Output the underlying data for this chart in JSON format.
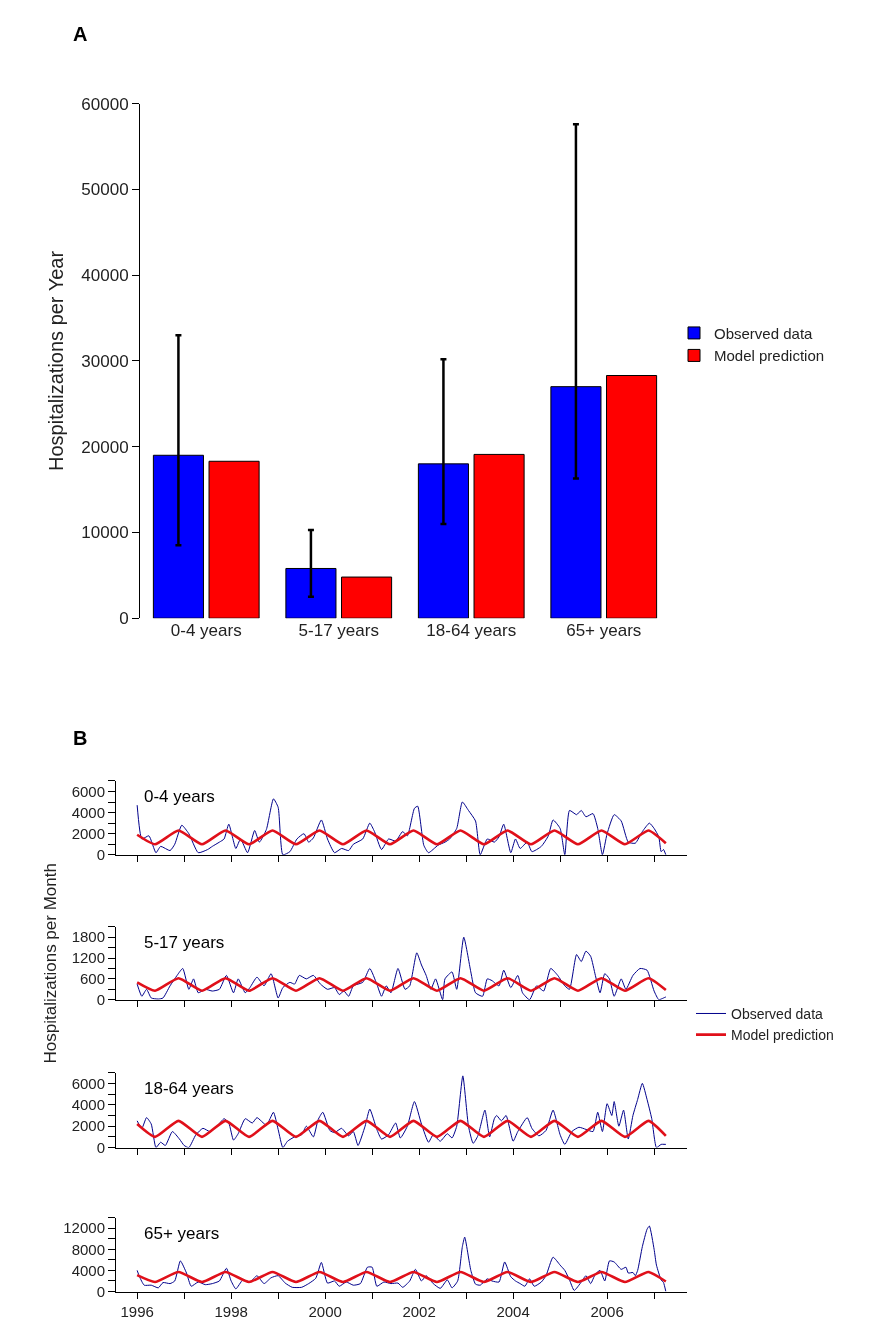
{
  "chart_data": [
    {
      "type": "bar",
      "ylabel": "Hospitalizations per Year",
      "annotations": [
        "A"
      ],
      "categories": [
        "0-4 years",
        "5-17 years",
        "18-64 years",
        "65+ years"
      ],
      "series": [
        {
          "name": "Observed data",
          "color": "#0000ff",
          "values": [
            19000,
            5800,
            18000,
            27000
          ],
          "errors": [
            [
              8500,
              33000
            ],
            [
              2500,
              10300
            ],
            [
              11000,
              30200
            ],
            [
              16300,
              57600
            ]
          ]
        },
        {
          "name": "Model prediction",
          "color": "#ff0000",
          "values": [
            18300,
            4800,
            19100,
            28300
          ]
        }
      ],
      "ylim": [
        0,
        60000
      ],
      "yticks": [
        0,
        10000,
        20000,
        30000,
        40000,
        50000,
        60000
      ],
      "legend": "right"
    },
    {
      "type": "line",
      "title": "0-4 years",
      "annotations": [
        "B"
      ],
      "tick_labels": "y",
      "legend": "right",
      "marker": "none",
      "line_style": "solid",
      "xlim": [
        1995.55,
        2007.7
      ],
      "xticks": [
        1996,
        {
          "value": 1997,
          "label": null
        },
        1998,
        {
          "value": 1999,
          "label": null
        },
        2000,
        {
          "value": 2001,
          "label": null
        },
        2002,
        {
          "value": 2003,
          "label": null
        },
        2004,
        {
          "value": 2005,
          "label": null
        },
        2006,
        {
          "value": 2007,
          "label": null
        }
      ],
      "ylim": [
        0,
        7000
      ],
      "yticks": [
        0,
        {
          "value": 1000,
          "label": null
        },
        2000,
        {
          "value": 3000,
          "label": null
        },
        4000,
        {
          "value": 5000,
          "label": null
        },
        6000,
        {
          "value": 7000,
          "label": null
        }
      ],
      "series": [
        {
          "name": "Observed data",
          "color": "#00008b",
          "x": [
            1996.0,
            1996.1,
            1996.25,
            1996.4,
            1996.5,
            1996.7,
            1996.8,
            1996.95,
            1997.1,
            1997.3,
            1997.5,
            1997.6,
            1997.75,
            1997.85,
            1997.95,
            1998.1,
            1998.2,
            1998.35,
            1998.5,
            1998.6,
            1998.75,
            1998.9,
            1999.0,
            1999.1,
            1999.25,
            1999.4,
            1999.55,
            1999.65,
            1999.75,
            1999.92,
            2000.05,
            2000.2,
            2000.35,
            2000.5,
            2000.6,
            2000.8,
            2000.95,
            2001.05,
            2001.2,
            2001.35,
            2001.5,
            2001.65,
            2001.75,
            2001.9,
            2001.97,
            2002.1,
            2002.2,
            2002.4,
            2002.55,
            2002.65,
            2002.8,
            2002.92,
            2003.05,
            2003.2,
            2003.3,
            2003.45,
            2003.6,
            2003.7,
            2003.8,
            2003.95,
            2004.05,
            2004.15,
            2004.3,
            2004.4,
            2004.6,
            2004.75,
            2004.85,
            2005.0,
            2005.1,
            2005.2,
            2005.35,
            2005.45,
            2005.55,
            2005.7,
            2005.8,
            2005.9,
            2006.0,
            2006.15,
            2006.3,
            2006.45,
            2006.6,
            2006.75,
            2006.9,
            2007.0,
            2007.1,
            2007.15,
            2007.2,
            2007.25
          ],
          "values": [
            4700,
            1500,
            1800,
            200,
            800,
            400,
            1000,
            2800,
            2000,
            200,
            500,
            800,
            1200,
            1500,
            2900,
            600,
            1500,
            200,
            2300,
            1200,
            2400,
            5300,
            4500,
            0,
            300,
            1500,
            2000,
            1200,
            1600,
            3300,
            1500,
            200,
            600,
            400,
            1000,
            1500,
            3000,
            2200,
            500,
            1500,
            1300,
            2200,
            1800,
            4400,
            4600,
            900,
            200,
            900,
            1200,
            1500,
            2500,
            5000,
            4200,
            3200,
            0,
            1500,
            1200,
            1700,
            2900,
            200,
            1500,
            600,
            1200,
            300,
            800,
            1800,
            3300,
            2500,
            0,
            4200,
            3800,
            4200,
            3600,
            3900,
            2500,
            0,
            2000,
            3800,
            3200,
            1200,
            1100,
            2200,
            3000,
            2500,
            1700,
            300,
            500,
            0
          ]
        },
        {
          "name": "Model prediction",
          "color": "#e0101a",
          "x": [
            1996.0,
            1996.38,
            1996.88,
            1997.38,
            1997.88,
            1998.38,
            1998.88,
            1999.38,
            1999.88,
            2000.38,
            2000.88,
            2001.38,
            2001.88,
            2002.38,
            2002.88,
            2003.38,
            2003.88,
            2004.38,
            2004.88,
            2005.38,
            2005.88,
            2006.38,
            2006.88,
            2007.25
          ],
          "values": [
            1900,
            1000,
            2300,
            1000,
            2300,
            1000,
            2300,
            1000,
            2300,
            1000,
            2300,
            1000,
            2300,
            1000,
            2300,
            1000,
            2300,
            1000,
            2300,
            1000,
            2300,
            1000,
            2300,
            1100
          ]
        }
      ]
    },
    {
      "type": "line",
      "title": "5-17 years",
      "ylabel": "Hospitalizations per Month",
      "tick_labels": "y",
      "legend": false,
      "marker": "none",
      "line_style": "solid",
      "xlim": [
        1995.55,
        2007.7
      ],
      "xticks": [
        1996,
        {
          "value": 1997,
          "label": null
        },
        1998,
        {
          "value": 1999,
          "label": null
        },
        2000,
        {
          "value": 2001,
          "label": null
        },
        2002,
        {
          "value": 2003,
          "label": null
        },
        2004,
        {
          "value": 2005,
          "label": null
        },
        2006,
        {
          "value": 2007,
          "label": null
        }
      ],
      "ylim": [
        0,
        2100
      ],
      "yticks": [
        0,
        {
          "value": 300,
          "label": null
        },
        600,
        {
          "value": 900,
          "label": null
        },
        1200,
        {
          "value": 1500,
          "label": null
        },
        1800,
        {
          "value": 2100,
          "label": null
        }
      ],
      "series": [
        {
          "color": "#00008b",
          "x": [
            1996.0,
            1996.1,
            1996.2,
            1996.3,
            1996.45,
            1996.55,
            1996.7,
            1996.85,
            1996.97,
            1997.1,
            1997.2,
            1997.3,
            1997.45,
            1997.6,
            1997.75,
            1997.9,
            1998.05,
            1998.15,
            1998.3,
            1998.4,
            1998.55,
            1998.7,
            1998.85,
            1999.0,
            1999.1,
            1999.25,
            1999.35,
            1999.45,
            1999.6,
            1999.75,
            1999.9,
            2000.05,
            2000.2,
            2000.3,
            2000.4,
            2000.5,
            2000.6,
            2000.8,
            2000.95,
            2001.1,
            2001.2,
            2001.3,
            2001.4,
            2001.55,
            2001.7,
            2001.8,
            2001.95,
            2002.05,
            2002.15,
            2002.25,
            2002.35,
            2002.5,
            2002.55,
            2002.7,
            2002.8,
            2002.95,
            2003.1,
            2003.2,
            2003.35,
            2003.45,
            2003.55,
            2003.7,
            2003.8,
            2003.95,
            2004.1,
            2004.2,
            2004.35,
            2004.5,
            2004.65,
            2004.8,
            2004.95,
            2005.1,
            2005.2,
            2005.35,
            2005.45,
            2005.55,
            2005.65,
            2005.75,
            2005.85,
            2005.95,
            2006.05,
            2006.15,
            2006.3,
            2006.4,
            2006.55,
            2006.7,
            2006.85,
            2007.0,
            2007.1,
            2007.2,
            2007.25
          ],
          "values": [
            450,
            100,
            300,
            50,
            20,
            50,
            400,
            700,
            900,
            300,
            600,
            200,
            300,
            250,
            300,
            700,
            200,
            600,
            200,
            350,
            650,
            400,
            750,
            50,
            350,
            500,
            450,
            700,
            600,
            700,
            450,
            300,
            350,
            150,
            250,
            100,
            400,
            500,
            900,
            450,
            100,
            400,
            200,
            900,
            300,
            400,
            1350,
            1000,
            700,
            300,
            600,
            0,
            600,
            800,
            300,
            1800,
            800,
            200,
            100,
            600,
            550,
            400,
            850,
            350,
            700,
            200,
            0,
            400,
            250,
            900,
            700,
            400,
            300,
            1300,
            1100,
            1400,
            1250,
            700,
            200,
            750,
            600,
            100,
            600,
            300,
            700,
            900,
            850,
            250,
            0,
            50,
            80
          ]
        },
        {
          "color": "#e0101a",
          "x": [
            1996.0,
            1996.38,
            1996.88,
            1997.38,
            1997.88,
            1998.38,
            1998.88,
            1999.38,
            1999.88,
            2000.38,
            2000.88,
            2001.38,
            2001.88,
            2002.38,
            2002.88,
            2003.38,
            2003.88,
            2004.38,
            2004.88,
            2005.38,
            2005.88,
            2006.38,
            2006.88,
            2007.25
          ],
          "values": [
            500,
            260,
            620,
            260,
            620,
            260,
            620,
            260,
            620,
            260,
            620,
            260,
            620,
            260,
            620,
            260,
            620,
            260,
            620,
            260,
            620,
            260,
            620,
            280
          ]
        }
      ]
    },
    {
      "type": "line",
      "title": "18-64 years",
      "tick_labels": "y",
      "legend": false,
      "marker": "none",
      "line_style": "solid",
      "xlim": [
        1995.55,
        2007.7
      ],
      "xticks": [
        1996,
        {
          "value": 1997,
          "label": null
        },
        1998,
        {
          "value": 1999,
          "label": null
        },
        2000,
        {
          "value": 2001,
          "label": null
        },
        2002,
        {
          "value": 2003,
          "label": null
        },
        2004,
        {
          "value": 2005,
          "label": null
        },
        2006,
        {
          "value": 2007,
          "label": null
        }
      ],
      "ylim": [
        0,
        7000
      ],
      "yticks": [
        0,
        {
          "value": 1000,
          "label": null
        },
        2000,
        {
          "value": 3000,
          "label": null
        },
        4000,
        {
          "value": 5000,
          "label": null
        },
        6000,
        {
          "value": 7000,
          "label": null
        }
      ],
      "series": [
        {
          "color": "#00008b",
          "x": [
            1996.0,
            1996.1,
            1996.2,
            1996.3,
            1996.4,
            1996.5,
            1996.6,
            1996.75,
            1996.9,
            1997.0,
            1997.1,
            1997.25,
            1997.4,
            1997.55,
            1997.7,
            1997.85,
            1997.95,
            1998.05,
            1998.15,
            1998.3,
            1998.45,
            1998.55,
            1998.75,
            1998.9,
            1999.0,
            1999.1,
            1999.2,
            1999.35,
            1999.5,
            1999.6,
            1999.75,
            1999.85,
            1999.95,
            2000.1,
            2000.2,
            2000.35,
            2000.5,
            2000.6,
            2000.7,
            2000.85,
            2000.95,
            2001.1,
            2001.2,
            2001.35,
            2001.5,
            2001.6,
            2001.75,
            2001.9,
            2002.05,
            2002.2,
            2002.3,
            2002.45,
            2002.6,
            2002.7,
            2002.8,
            2002.93,
            2003.05,
            2003.15,
            2003.25,
            2003.4,
            2003.5,
            2003.6,
            2003.65,
            2003.75,
            2003.85,
            2004.0,
            2004.1,
            2004.3,
            2004.4,
            2004.55,
            2004.7,
            2004.85,
            2005.0,
            2005.1,
            2005.25,
            2005.4,
            2005.55,
            2005.7,
            2005.8,
            2005.9,
            2006.0,
            2006.1,
            2006.15,
            2006.25,
            2006.35,
            2006.45,
            2006.55,
            2006.65,
            2006.75,
            2006.85,
            2006.95,
            2007.05,
            2007.15,
            2007.25
          ],
          "values": [
            2500,
            1800,
            2800,
            2200,
            0,
            500,
            200,
            1500,
            800,
            200,
            0,
            1200,
            1800,
            1500,
            2000,
            2700,
            2300,
            700,
            1300,
            2700,
            2300,
            2800,
            2100,
            3300,
            1700,
            0,
            600,
            1000,
            1200,
            2000,
            1000,
            2600,
            3300,
            1600,
            1400,
            1800,
            1100,
            1500,
            200,
            2000,
            3600,
            1700,
            800,
            1200,
            2300,
            900,
            2000,
            4300,
            2200,
            500,
            1200,
            600,
            1300,
            900,
            2000,
            6700,
            2000,
            400,
            1100,
            3500,
            1000,
            2700,
            3000,
            2500,
            3000,
            600,
            1500,
            2800,
            1800,
            1100,
            1600,
            3500,
            1200,
            300,
            1500,
            1900,
            1700,
            1500,
            3300,
            1500,
            4100,
            3000,
            4300,
            2000,
            3500,
            800,
            3000,
            4500,
            6000,
            4500,
            2700,
            0,
            300,
            300
          ]
        },
        {
          "color": "#e0101a",
          "x": [
            1996.0,
            1996.38,
            1996.88,
            1997.38,
            1997.88,
            1998.38,
            1998.88,
            1999.38,
            1999.88,
            2000.38,
            2000.88,
            2001.38,
            2001.88,
            2002.38,
            2002.88,
            2003.38,
            2003.88,
            2004.38,
            2004.88,
            2005.38,
            2005.88,
            2006.38,
            2006.88,
            2007.25
          ],
          "values": [
            2200,
            1000,
            2500,
            1000,
            2500,
            1000,
            2500,
            1000,
            2500,
            1000,
            2500,
            1000,
            2500,
            1000,
            2500,
            1000,
            2500,
            1000,
            2500,
            1000,
            2500,
            1000,
            2500,
            1100
          ]
        }
      ]
    },
    {
      "type": "line",
      "title": "65+ years",
      "legend": false,
      "marker": "none",
      "line_style": "solid",
      "xlim": [
        1995.55,
        2007.7
      ],
      "xticks": [
        1996,
        {
          "value": 1997,
          "label": null
        },
        1998,
        {
          "value": 1999,
          "label": null
        },
        2000,
        {
          "value": 2001,
          "label": null
        },
        2002,
        {
          "value": 2003,
          "label": null
        },
        2004,
        {
          "value": 2005,
          "label": null
        },
        2006,
        {
          "value": 2007,
          "label": null
        }
      ],
      "ylim": [
        0,
        14000
      ],
      "yticks": [
        0,
        {
          "value": 2000,
          "label": null
        },
        4000,
        {
          "value": 6000,
          "label": null
        },
        8000,
        {
          "value": 10000,
          "label": null
        },
        12000,
        {
          "value": 14000,
          "label": null
        }
      ],
      "series": [
        {
          "color": "#00008b",
          "x": [
            1996.0,
            1996.05,
            1996.15,
            1996.3,
            1996.45,
            1996.55,
            1996.7,
            1996.8,
            1996.92,
            1997.05,
            1997.15,
            1997.3,
            1997.45,
            1997.6,
            1997.75,
            1997.9,
            1998.0,
            1998.1,
            1998.25,
            1998.4,
            1998.55,
            1998.7,
            1998.85,
            1999.0,
            1999.15,
            1999.3,
            1999.5,
            1999.65,
            1999.8,
            1999.92,
            2000.05,
            2000.2,
            2000.3,
            2000.45,
            2000.6,
            2000.75,
            2000.9,
            2001.0,
            2001.1,
            2001.25,
            2001.4,
            2001.55,
            2001.65,
            2001.8,
            2001.92,
            2002.05,
            2002.15,
            2002.3,
            2002.45,
            2002.6,
            2002.7,
            2002.82,
            2002.92,
            2002.97,
            2003.1,
            2003.2,
            2003.3,
            2003.45,
            2003.55,
            2003.7,
            2003.82,
            2003.95,
            2004.05,
            2004.15,
            2004.25,
            2004.35,
            2004.45,
            2004.6,
            2004.7,
            2004.85,
            2005.0,
            2005.1,
            2005.2,
            2005.3,
            2005.45,
            2005.55,
            2005.65,
            2005.75,
            2005.85,
            2005.95,
            2006.05,
            2006.15,
            2006.3,
            2006.4,
            2006.45,
            2006.55,
            2006.6,
            2006.65,
            2006.75,
            2006.85,
            2006.9,
            2007.0,
            2007.05,
            2007.15,
            2007.2,
            2007.25
          ],
          "values": [
            4000,
            2800,
            1200,
            1200,
            700,
            1700,
            1500,
            2000,
            5800,
            3500,
            1000,
            1800,
            1300,
            1500,
            2000,
            4400,
            2000,
            500,
            2200,
            1800,
            3000,
            1500,
            2600,
            3000,
            1600,
            800,
            800,
            1500,
            2500,
            5500,
            1600,
            2000,
            1000,
            1800,
            1200,
            1500,
            4600,
            4600,
            1000,
            1800,
            1500,
            1600,
            800,
            2000,
            4200,
            2000,
            3000,
            1500,
            600,
            2200,
            700,
            2000,
            8500,
            10300,
            4000,
            1400,
            1200,
            2400,
            2000,
            1800,
            5600,
            2800,
            2000,
            1500,
            1000,
            2400,
            1000,
            1800,
            3000,
            6500,
            5000,
            4000,
            2200,
            200,
            1800,
            3000,
            1500,
            3300,
            4000,
            2000,
            5800,
            5600,
            4200,
            4600,
            3500,
            3600,
            3000,
            4000,
            8500,
            11800,
            12400,
            8000,
            5000,
            2200,
            1700,
            0
          ]
        },
        {
          "color": "#e0101a",
          "x": [
            1996.0,
            1996.38,
            1996.88,
            1997.38,
            1997.88,
            1998.38,
            1998.88,
            1999.38,
            1999.88,
            2000.38,
            2000.88,
            2001.38,
            2001.88,
            2002.38,
            2002.88,
            2003.38,
            2003.88,
            2004.38,
            2004.88,
            2005.38,
            2005.88,
            2006.38,
            2006.88,
            2007.25
          ],
          "values": [
            3100,
            1800,
            3700,
            1800,
            3700,
            1800,
            3700,
            1800,
            3700,
            1800,
            3700,
            1800,
            3700,
            1800,
            3700,
            1800,
            3700,
            1800,
            3700,
            1800,
            3700,
            1800,
            3700,
            1900
          ]
        }
      ]
    }
  ]
}
